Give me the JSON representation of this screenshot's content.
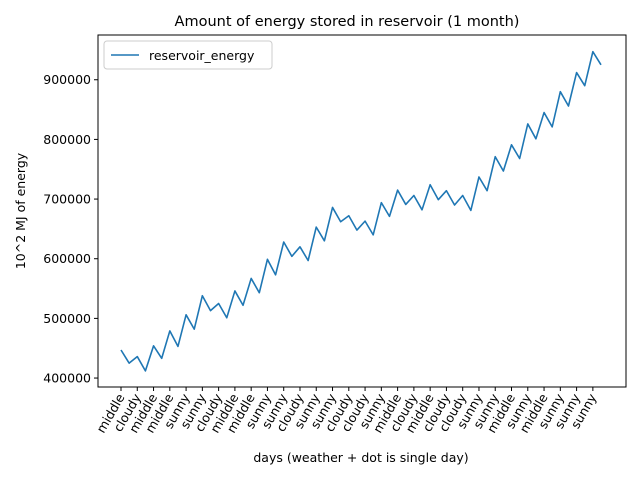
{
  "chart_data": {
    "type": "line",
    "title": "Amount of energy stored in reservoir (1 month)",
    "xlabel": "days (weather + dot is single day)",
    "ylabel": "10^2 MJ of energy",
    "ylim": [
      385000,
      975000
    ],
    "yticks": [
      400000,
      500000,
      600000,
      700000,
      800000,
      900000
    ],
    "ytick_labels": [
      "400000",
      "500000",
      "600000",
      "700000",
      "800000",
      "900000"
    ],
    "x_tick_labels": [
      "middle",
      "cloudy",
      "middle",
      "middle",
      "sunny",
      "sunny",
      "cloudy",
      "middle",
      "middle",
      "sunny",
      "sunny",
      "cloudy",
      "sunny",
      "sunny",
      "cloudy",
      "cloudy",
      "sunny",
      "middle",
      "cloudy",
      "middle",
      "cloudy",
      "cloudy",
      "sunny",
      "sunny",
      "middle",
      "sunny",
      "middle",
      "sunny",
      "sunny",
      "sunny"
    ],
    "grid": false,
    "legend_position": "upper left",
    "series": [
      {
        "name": "reservoir_energy",
        "color": "#1f77b4",
        "values": [
          447000,
          425000,
          436000,
          412000,
          454000,
          433000,
          479000,
          453000,
          506000,
          482000,
          538000,
          513000,
          525000,
          501000,
          546000,
          522000,
          567000,
          543000,
          599000,
          573000,
          628000,
          604000,
          620000,
          597000,
          653000,
          630000,
          686000,
          662000,
          672000,
          648000,
          663000,
          640000,
          694000,
          671000,
          715000,
          691000,
          706000,
          682000,
          724000,
          699000,
          714000,
          690000,
          706000,
          681000,
          737000,
          714000,
          771000,
          747000,
          791000,
          768000,
          826000,
          801000,
          845000,
          821000,
          880000,
          856000,
          912000,
          890000,
          947000,
          925000
        ]
      }
    ]
  }
}
